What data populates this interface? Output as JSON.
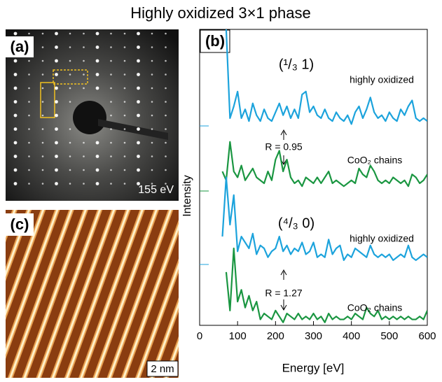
{
  "title": "Highly oxidized 3×1 phase",
  "panels": {
    "a_label": "(a)",
    "a_energy": "155 eV",
    "c_label": "(c)",
    "c_scale": "2 nm"
  },
  "chart_data": {
    "type": "line",
    "panel_label": "(b)",
    "x_label": "Energy [eV]",
    "y_label": "Intensity",
    "xlim": [
      0,
      600
    ],
    "xticks": [
      0,
      100,
      200,
      300,
      400,
      500,
      600
    ],
    "ylim": [
      0,
      100
    ],
    "x": [
      60,
      70,
      80,
      90,
      100,
      110,
      120,
      130,
      140,
      150,
      160,
      170,
      180,
      190,
      200,
      210,
      220,
      230,
      240,
      250,
      260,
      270,
      280,
      290,
      300,
      310,
      320,
      330,
      340,
      350,
      360,
      370,
      380,
      390,
      400,
      410,
      420,
      430,
      440,
      450,
      460,
      470,
      480,
      490,
      500,
      510,
      520,
      530,
      540,
      550,
      560,
      570,
      580,
      590,
      600
    ],
    "annotations": [
      "(¹/₃  1)",
      "R = 0.95",
      "(⁴/₃  0)",
      "R = 1.27"
    ],
    "series": [
      {
        "name": "highly oxidized",
        "color": "#1ca3dc",
        "values": [
          null,
          100,
          70,
          74,
          79,
          70,
          73,
          69,
          75,
          71,
          69,
          73,
          70,
          69,
          72,
          75,
          71,
          74,
          70,
          73,
          70,
          78,
          79,
          72,
          74,
          71,
          70,
          73,
          70,
          69,
          72,
          70,
          69,
          71,
          68,
          72,
          74,
          70,
          73,
          77,
          72,
          70,
          71,
          69,
          72,
          70,
          69,
          73,
          71,
          74,
          76,
          70,
          69,
          70,
          69
        ]
      },
      {
        "name": "CoO₂ chains",
        "color": "#1a9641",
        "values": [
          52,
          49,
          62,
          52,
          50,
          54,
          49,
          51,
          53,
          50,
          49,
          48,
          52,
          49,
          56,
          59,
          52,
          56,
          50,
          48,
          49,
          47,
          50,
          49,
          48,
          50,
          48,
          50,
          52,
          48,
          49,
          48,
          47,
          48,
          49,
          48,
          53,
          51,
          50,
          54,
          52,
          49,
          48,
          49,
          48,
          50,
          49,
          48,
          49,
          47,
          51,
          50,
          48,
          49,
          51
        ]
      },
      {
        "name": "highly oxidized",
        "color": "#1ca3dc",
        "values": [
          30,
          50,
          34,
          44,
          25,
          30,
          28,
          26,
          31,
          24,
          27,
          26,
          23,
          25,
          26,
          30,
          25,
          27,
          24,
          26,
          25,
          28,
          24,
          25,
          28,
          23,
          24,
          23,
          29,
          24,
          26,
          27,
          22,
          24,
          23,
          26,
          25,
          24,
          23,
          27,
          24,
          23,
          24,
          23,
          24,
          22,
          23,
          24,
          23,
          27,
          23,
          22,
          23,
          24,
          23
        ]
      },
      {
        "name": "CoO₂ chains",
        "color": "#1a9641",
        "values": [
          null,
          18,
          5,
          26,
          8,
          12,
          6,
          10,
          5,
          8,
          2,
          4,
          3,
          2,
          5,
          3,
          1,
          4,
          3,
          2,
          4,
          2,
          3,
          2,
          4,
          2,
          3,
          1,
          4,
          2,
          3,
          2,
          2,
          3,
          2,
          4,
          3,
          2,
          6,
          4,
          3,
          5,
          2,
          3,
          2,
          3,
          2,
          3,
          2,
          3,
          2,
          2,
          3,
          2,
          5
        ]
      }
    ]
  }
}
